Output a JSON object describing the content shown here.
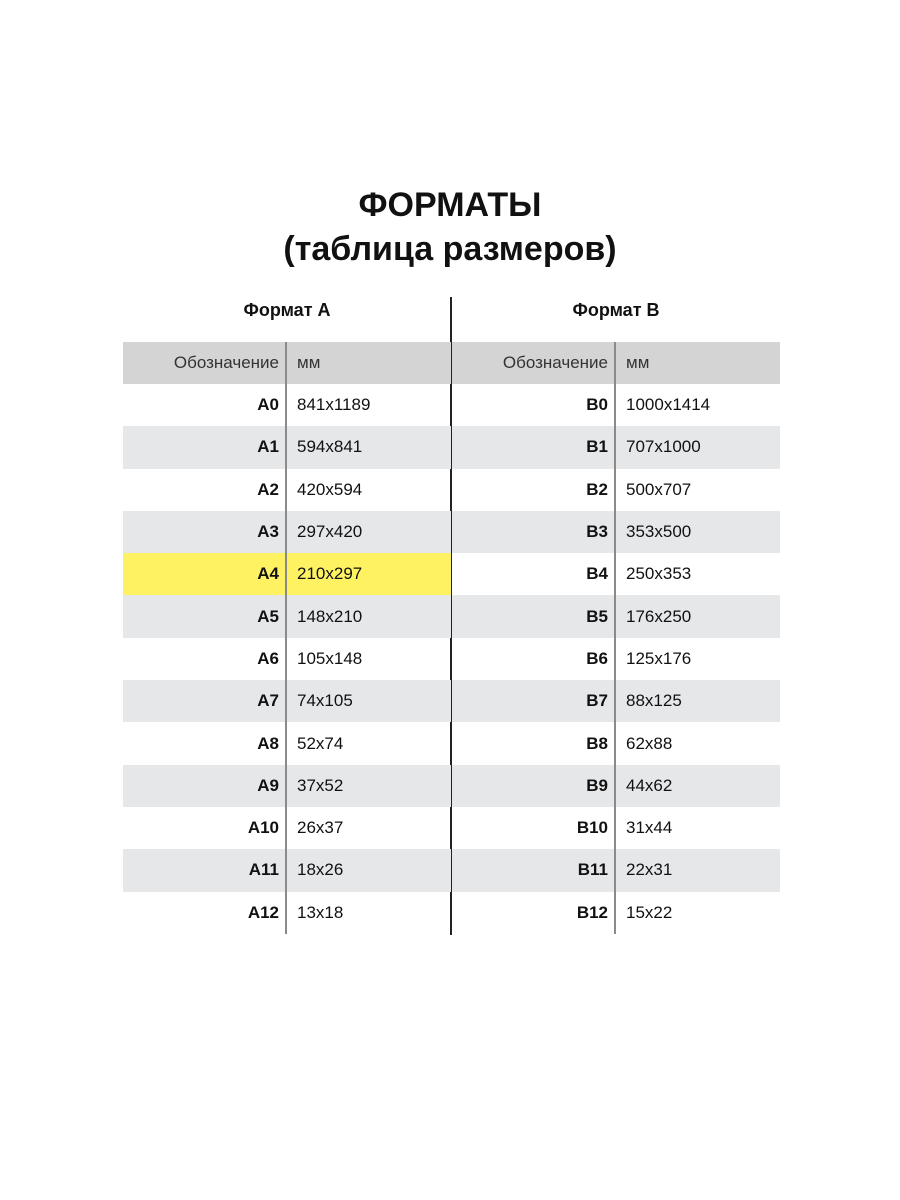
{
  "title": {
    "line1": "ФОРМАТЫ",
    "line2": "(таблица размеров)"
  },
  "colors": {
    "header_bg": "#d4d4d4",
    "alt_row_bg": "#e6e7e9",
    "highlight": "#fef263"
  },
  "tables": [
    {
      "heading": "Формат A",
      "columns": [
        "Обозначение",
        "мм"
      ],
      "highlight": "A4",
      "rows": [
        [
          "A0",
          "841x1189"
        ],
        [
          "A1",
          "594x841"
        ],
        [
          "A2",
          "420x594"
        ],
        [
          "A3",
          "297x420"
        ],
        [
          "A4",
          "210x297"
        ],
        [
          "A5",
          "148x210"
        ],
        [
          "A6",
          "105x148"
        ],
        [
          "A7",
          "74x105"
        ],
        [
          "A8",
          "52x74"
        ],
        [
          "A9",
          "37x52"
        ],
        [
          "A10",
          "26x37"
        ],
        [
          "A11",
          "18x26"
        ],
        [
          "A12",
          "13x18"
        ]
      ]
    },
    {
      "heading": "Формат B",
      "columns": [
        "Обозначение",
        "мм"
      ],
      "highlight": null,
      "rows": [
        [
          "B0",
          "1000x1414"
        ],
        [
          "B1",
          "707x1000"
        ],
        [
          "B2",
          "500x707"
        ],
        [
          "B3",
          "353x500"
        ],
        [
          "B4",
          "250x353"
        ],
        [
          "B5",
          "176x250"
        ],
        [
          "B6",
          "125x176"
        ],
        [
          "B7",
          "88x125"
        ],
        [
          "B8",
          "62x88"
        ],
        [
          "B9",
          "44x62"
        ],
        [
          "B10",
          "31x44"
        ],
        [
          "B11",
          "22x31"
        ],
        [
          "B12",
          "15x22"
        ]
      ]
    }
  ]
}
